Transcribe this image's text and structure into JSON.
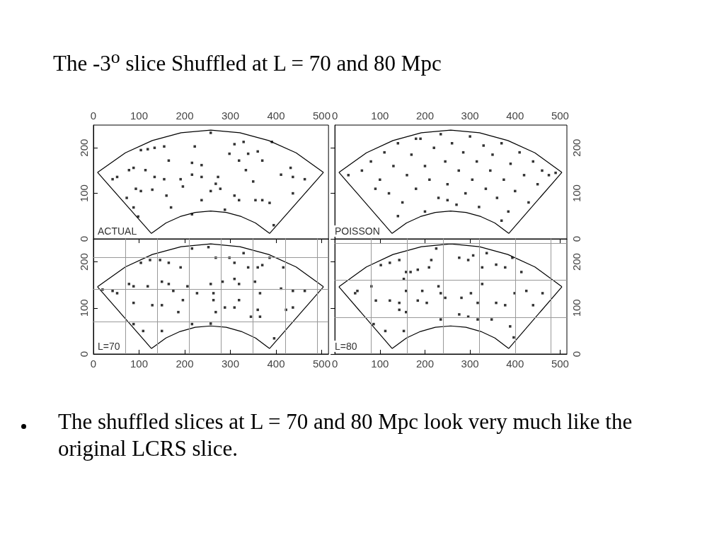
{
  "chart_data": [
    {
      "type": "scatter",
      "title": "The -3$^{o}$ slice Shuffled at L = 70 and 80 Mpc",
      "xlim": [
        0,
        515
      ],
      "ylim": [
        0,
        250
      ],
      "xticks": [
        0,
        100,
        200,
        300,
        400,
        500
      ],
      "yticks": [
        0,
        100,
        200
      ],
      "annotations": [
        "ACTUAL"
      ],
      "series": [
        {
          "color": "#000000",
          "marker": "square",
          "x": [
            104,
            119,
            134,
            155,
            78,
            88,
            114,
            134,
            155,
            165,
            93,
            104,
            129,
            160,
            191,
            196,
            216,
            222,
            216,
            237,
            237,
            257,
            268,
            278,
            273,
            257,
            298,
            309,
            319,
            329,
            339,
            360,
            370,
            334,
            350,
            319,
            355,
            370,
            386,
            411,
            437,
            463,
            437,
            391,
            432,
            88,
            98,
            170,
            216,
            395,
            52,
            42,
            73,
            288,
            237,
            309
          ],
          "values": [
            195,
            197,
            200,
            203,
            151,
            156,
            151,
            136,
            131,
            172,
            110,
            105,
            108,
            95,
            131,
            115,
            141,
            203,
            167,
            136,
            85,
            105,
            121,
            110,
            136,
            233,
            187,
            208,
            172,
            213,
            187,
            192,
            172,
            151,
            126,
            85,
            85,
            85,
            79,
            141,
            136,
            131,
            100,
            213,
            156,
            69,
            49,
            69,
            54,
            30,
            136,
            131,
            90,
            64,
            162,
            95
          ]
        },
        {
          "type": "line",
          "color": "#000000",
          "marker": "none",
          "x": [
            9,
            70,
            129,
            192,
            257,
            321,
            384,
            444,
            504
          ],
          "values": [
            146,
            189,
            216,
            233,
            239,
            233,
            216,
            189,
            146
          ]
        },
        {
          "type": "line",
          "color": "#000000",
          "marker": "none",
          "x": [
            386,
            504
          ],
          "values": [
            12,
            146
          ]
        },
        {
          "type": "line",
          "color": "#000000",
          "marker": "none",
          "x": [
            127,
            159,
            190,
            223,
            257,
            291,
            324,
            355,
            386
          ],
          "values": [
            12,
            35,
            49,
            58,
            61,
            58,
            49,
            35,
            12
          ]
        },
        {
          "type": "line",
          "color": "#000000",
          "marker": "none",
          "x": [
            9,
            127
          ],
          "values": [
            146,
            12
          ]
        }
      ]
    },
    {
      "type": "scatter",
      "xlim": [
        0,
        515
      ],
      "ylim": [
        0,
        250
      ],
      "xticks": [
        0,
        100,
        200,
        300,
        400,
        500
      ],
      "yticks": [
        0,
        100,
        200
      ],
      "annotations": [
        "POISSON"
      ],
      "series": [
        {
          "color": "#000000",
          "marker": "square",
          "x": [
            60,
            80,
            100,
            110,
            120,
            130,
            140,
            150,
            160,
            170,
            180,
            190,
            200,
            200,
            210,
            220,
            230,
            235,
            245,
            250,
            260,
            270,
            275,
            285,
            290,
            300,
            305,
            315,
            320,
            330,
            335,
            345,
            350,
            360,
            370,
            375,
            385,
            390,
            400,
            410,
            420,
            430,
            440,
            450,
            460,
            475,
            490,
            30,
            90,
            140,
            370,
            250,
            180
          ],
          "values": [
            150,
            170,
            130,
            190,
            100,
            160,
            210,
            80,
            140,
            185,
            110,
            220,
            60,
            160,
            130,
            200,
            90,
            230,
            170,
            120,
            210,
            75,
            150,
            190,
            100,
            225,
            130,
            170,
            70,
            205,
            110,
            150,
            185,
            90,
            210,
            130,
            60,
            165,
            105,
            190,
            140,
            80,
            170,
            120,
            150,
            140,
            145,
            140,
            110,
            50,
            40,
            85,
            220
          ]
        },
        {
          "type": "line",
          "color": "#000000",
          "marker": "none",
          "x": [
            9,
            70,
            129,
            192,
            257,
            321,
            384,
            444,
            504
          ],
          "values": [
            146,
            189,
            216,
            233,
            239,
            233,
            216,
            189,
            146
          ]
        },
        {
          "type": "line",
          "color": "#000000",
          "marker": "none",
          "x": [
            386,
            504
          ],
          "values": [
            12,
            146
          ]
        },
        {
          "type": "line",
          "color": "#000000",
          "marker": "none",
          "x": [
            127,
            159,
            190,
            223,
            257,
            291,
            324,
            355,
            386
          ],
          "values": [
            12,
            35,
            49,
            58,
            61,
            58,
            49,
            35,
            12
          ]
        },
        {
          "type": "line",
          "color": "#000000",
          "marker": "none",
          "x": [
            9,
            127
          ],
          "values": [
            146,
            12
          ]
        }
      ]
    },
    {
      "type": "scatter",
      "xlim": [
        0,
        515
      ],
      "ylim": [
        0,
        250
      ],
      "xticks": [
        0,
        100,
        200,
        300,
        400,
        500
      ],
      "yticks": [
        0,
        100,
        200
      ],
      "annotations": [
        "L=70"
      ],
      "ref_lines": [
        {
          "axis": "x",
          "value": 70,
          "color": "#999999"
        },
        {
          "axis": "x",
          "value": 140,
          "color": "#999999"
        },
        {
          "axis": "x",
          "value": 210,
          "color": "#999999"
        },
        {
          "axis": "x",
          "value": 280,
          "color": "#999999"
        },
        {
          "axis": "x",
          "value": 350,
          "color": "#999999"
        },
        {
          "axis": "x",
          "value": 420,
          "color": "#999999"
        },
        {
          "axis": "x",
          "value": 490,
          "color": "#999999"
        },
        {
          "axis": "y",
          "value": 70,
          "color": "#999999"
        },
        {
          "axis": "y",
          "value": 140,
          "color": "#999999"
        },
        {
          "axis": "y",
          "value": 210,
          "color": "#999999"
        }
      ],
      "series": [
        {
          "color": "#000000",
          "marker": "square",
          "x": [
            104,
            124,
            146,
            165,
            191,
            216,
            252,
            268,
            298,
            309,
            329,
            339,
            360,
            370,
            386,
            416,
            78,
            88,
            119,
            150,
            165,
            175,
            206,
            227,
            257,
            263,
            283,
            309,
            319,
            354,
            365,
            411,
            437,
            463,
            88,
            129,
            150,
            186,
            196,
            263,
            268,
            288,
            309,
            319,
            345,
            360,
            365,
            437,
            422,
            88,
            109,
            150,
            216,
            257,
            396,
            52,
            42,
            20
          ],
          "values": [
            198,
            204,
            204,
            198,
            188,
            229,
            232,
            209,
            209,
            198,
            219,
            188,
            188,
            193,
            209,
            188,
            152,
            147,
            147,
            157,
            152,
            137,
            147,
            132,
            152,
            132,
            157,
            163,
            152,
            157,
            132,
            142,
            137,
            137,
            111,
            106,
            106,
            91,
            117,
            117,
            91,
            101,
            101,
            117,
            81,
            96,
            81,
            101,
            96,
            65,
            50,
            50,
            65,
            66,
            34,
            132,
            137,
            140
          ]
        },
        {
          "type": "line",
          "color": "#000000",
          "marker": "none",
          "x": [
            9,
            70,
            129,
            192,
            257,
            321,
            384,
            444,
            504
          ],
          "values": [
            146,
            189,
            216,
            233,
            239,
            233,
            216,
            189,
            146
          ]
        },
        {
          "type": "line",
          "color": "#000000",
          "marker": "none",
          "x": [
            386,
            504
          ],
          "values": [
            12,
            146
          ]
        },
        {
          "type": "line",
          "color": "#000000",
          "marker": "none",
          "x": [
            127,
            159,
            190,
            223,
            257,
            291,
            324,
            355,
            386
          ],
          "values": [
            12,
            35,
            49,
            58,
            61,
            58,
            49,
            35,
            12
          ]
        },
        {
          "type": "line",
          "color": "#000000",
          "marker": "none",
          "x": [
            9,
            127
          ],
          "values": [
            146,
            12
          ]
        }
      ]
    },
    {
      "type": "scatter",
      "xlim": [
        0,
        515
      ],
      "ylim": [
        0,
        250
      ],
      "xticks": [
        0,
        100,
        200,
        300,
        400,
        500
      ],
      "yticks": [
        0,
        100,
        200
      ],
      "annotations": [
        "L=80",
        "The shuffled slices at L = 70 and 80 Mpc look very much like the original LCRS slice."
      ],
      "ref_lines": [
        {
          "axis": "x",
          "value": 80,
          "color": "#999999"
        },
        {
          "axis": "x",
          "value": 160,
          "color": "#999999"
        },
        {
          "axis": "x",
          "value": 240,
          "color": "#999999"
        },
        {
          "axis": "x",
          "value": 320,
          "color": "#999999"
        },
        {
          "axis": "x",
          "value": 400,
          "color": "#999999"
        },
        {
          "axis": "x",
          "value": 480,
          "color": "#999999"
        },
        {
          "axis": "y",
          "value": 80,
          "color": "#999999"
        },
        {
          "axis": "y",
          "value": 160,
          "color": "#999999"
        },
        {
          "axis": "y",
          "value": 240,
          "color": "#999999"
        }
      ],
      "series": [
        {
          "color": "#000000",
          "marker": "square",
          "x": [
            102,
            122,
            143,
            158,
            168,
            184,
            214,
            225,
            209,
            276,
            296,
            307,
            327,
            337,
            358,
            378,
            394,
            414,
            81,
            91,
            122,
            143,
            153,
            158,
            194,
            184,
            204,
            230,
            235,
            245,
            281,
            302,
            317,
            327,
            358,
            378,
            399,
            425,
            461,
            440,
            143,
            158,
            235,
            276,
            296,
            317,
            348,
            389,
            112,
            153,
            86,
            397,
            50,
            45
          ],
          "values": [
            193,
            198,
            204,
            178,
            178,
            183,
            204,
            229,
            188,
            209,
            204,
            214,
            188,
            219,
            194,
            188,
            209,
            178,
            147,
            116,
            116,
            111,
            163,
            137,
            137,
            116,
            111,
            147,
            132,
            122,
            122,
            132,
            111,
            152,
            111,
            106,
            132,
            137,
            132,
            106,
            96,
            91,
            75,
            86,
            81,
            75,
            75,
            60,
            50,
            50,
            65,
            36,
            137,
            132
          ]
        },
        {
          "type": "line",
          "color": "#000000",
          "marker": "none",
          "x": [
            9,
            70,
            129,
            192,
            257,
            321,
            384,
            444,
            504
          ],
          "values": [
            146,
            189,
            216,
            233,
            239,
            233,
            216,
            189,
            146
          ]
        },
        {
          "type": "line",
          "color": "#000000",
          "marker": "none",
          "x": [
            386,
            504
          ],
          "values": [
            12,
            146
          ]
        },
        {
          "type": "line",
          "color": "#000000",
          "marker": "none",
          "x": [
            127,
            159,
            190,
            223,
            257,
            291,
            324,
            355,
            386
          ],
          "values": [
            12,
            35,
            49,
            58,
            61,
            58,
            49,
            35,
            12
          ]
        },
        {
          "type": "line",
          "color": "#000000",
          "marker": "none",
          "x": [
            9,
            127
          ],
          "values": [
            146,
            12
          ]
        }
      ]
    }
  ]
}
